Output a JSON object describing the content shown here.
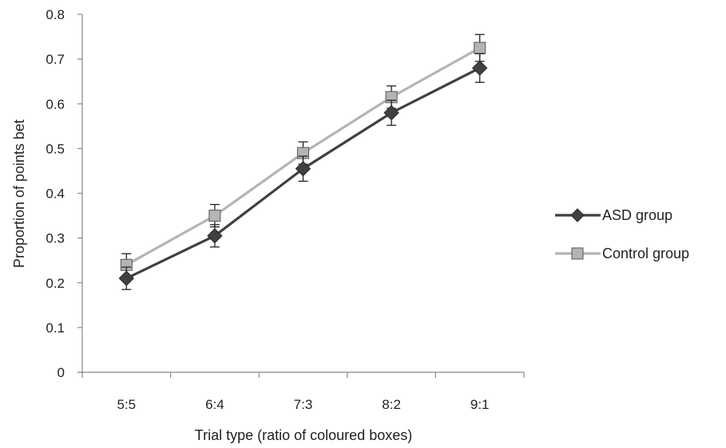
{
  "chart_data": {
    "type": "line",
    "title": "",
    "xlabel": "Trial type (ratio of coloured boxes)",
    "ylabel": "Proportion of points bet",
    "categories": [
      "5:5",
      "6:4",
      "7:3",
      "8:2",
      "9:1"
    ],
    "ylim": [
      0,
      0.8
    ],
    "yticks": [
      "0",
      "0.1",
      "0.2",
      "0.3",
      "0.4",
      "0.5",
      "0.6",
      "0.7",
      "0.8"
    ],
    "grid": false,
    "legend_position": "right",
    "series": [
      {
        "name": "ASD group",
        "marker": "diamond",
        "color": "#404040",
        "values": [
          0.21,
          0.305,
          0.455,
          0.58,
          0.68
        ],
        "error": [
          0.025,
          0.025,
          0.028,
          0.028,
          0.032
        ]
      },
      {
        "name": "Control group",
        "marker": "square",
        "color": "#b4b4b4",
        "values": [
          0.24,
          0.35,
          0.49,
          0.615,
          0.725
        ],
        "error": [
          0.025,
          0.025,
          0.025,
          0.025,
          0.03
        ]
      }
    ]
  }
}
